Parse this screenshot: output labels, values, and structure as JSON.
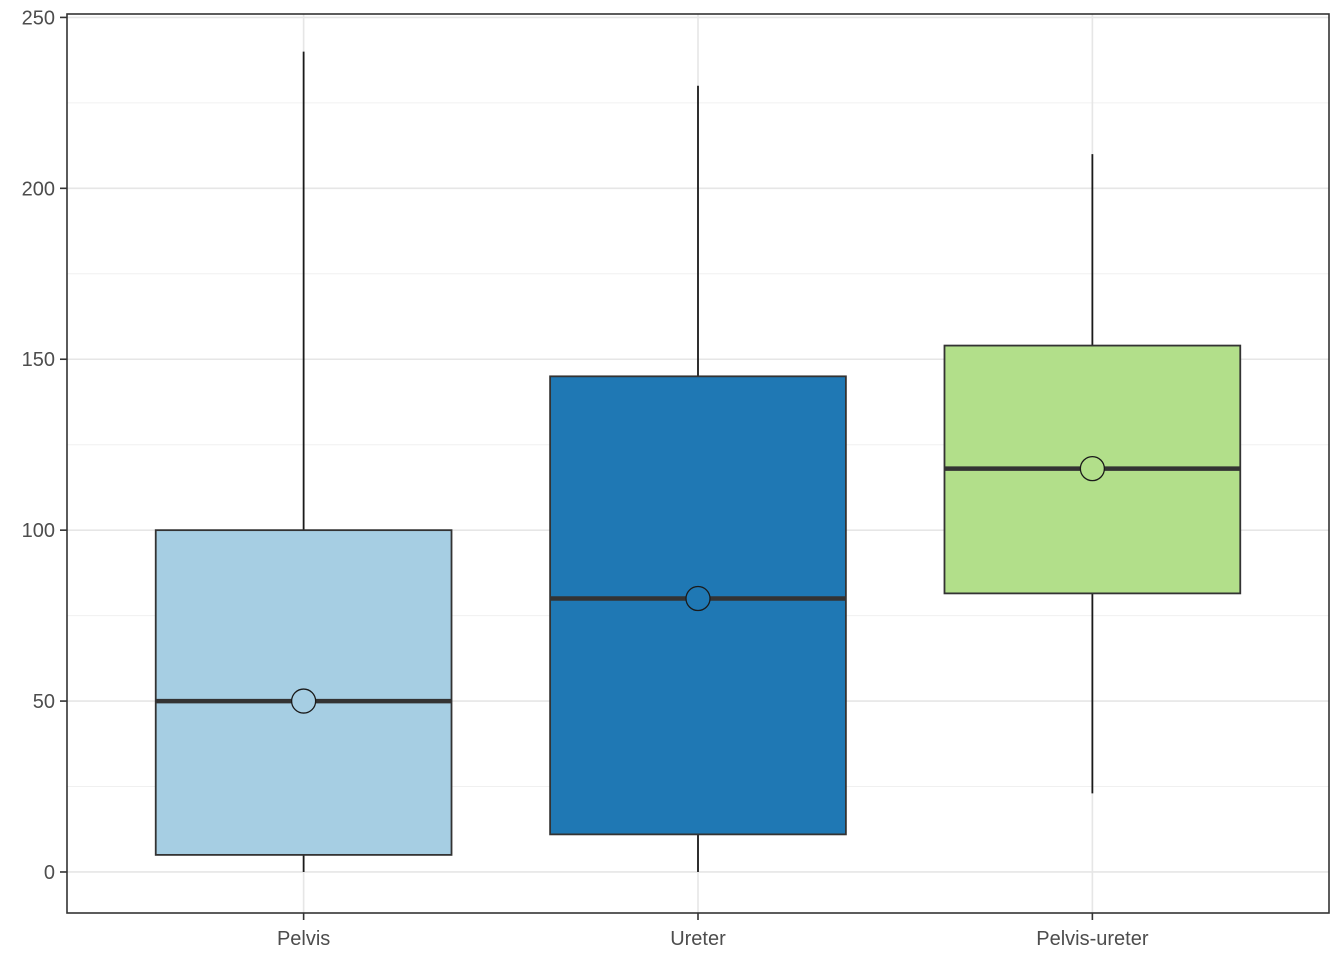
{
  "chart_data": {
    "type": "box",
    "title": "",
    "xlabel": "",
    "ylabel": "",
    "ylim": [
      -12,
      251
    ],
    "yticks": [
      0,
      50,
      100,
      150,
      200,
      250
    ],
    "grid": true,
    "legend": "none",
    "categories": [
      "Pelvis",
      "Ureter",
      "Pelvis-ureter"
    ],
    "boxes": [
      {
        "category": "Pelvis",
        "min": 0,
        "q1": 5,
        "median": 50,
        "q3": 100,
        "max": 240,
        "mean": 50,
        "color": "#a6cee3"
      },
      {
        "category": "Ureter",
        "min": 0,
        "q1": 11,
        "median": 80,
        "q3": 145,
        "max": 230,
        "mean": 80,
        "color": "#1f78b4"
      },
      {
        "category": "Pelvis-ureter",
        "min": 23,
        "q1": 81.5,
        "median": 118,
        "q3": 154,
        "max": 210,
        "mean": 118,
        "color": "#b2df8a"
      }
    ]
  }
}
